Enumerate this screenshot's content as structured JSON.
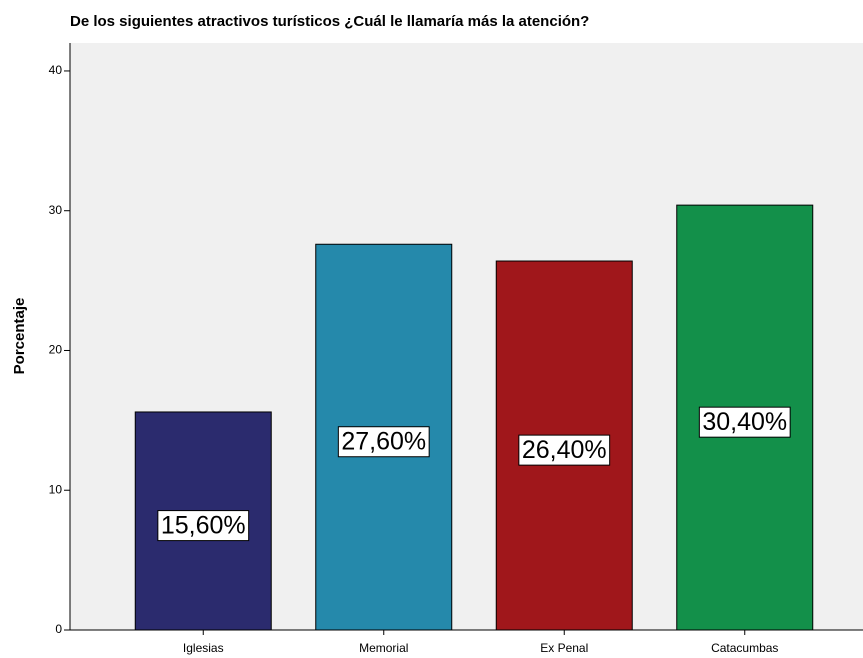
{
  "chart_data": {
    "type": "bar",
    "title": "De los siguientes atractivos turísticos  ¿Cuál le llamaría más la atención?",
    "y_label": "Porcentaje",
    "categories": [
      "Iglesias",
      "Memorial",
      "Ex Penal",
      "Catacumbas"
    ],
    "values": [
      15.6,
      27.6,
      26.4,
      30.4
    ],
    "value_labels": [
      "15,60%",
      "27,60%",
      "26,40%",
      "30,40%"
    ],
    "colors": [
      "#2b2b6e",
      "#2589ab",
      "#a0171b",
      "#13904a"
    ],
    "ylim": [
      0,
      42
    ],
    "yticks": [
      0,
      10,
      20,
      30,
      40
    ],
    "grid": false
  }
}
